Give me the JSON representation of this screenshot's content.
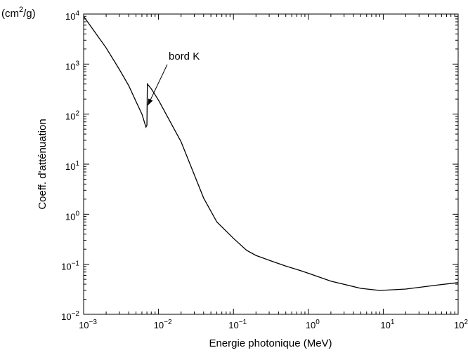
{
  "chart_data": {
    "type": "line",
    "title": "",
    "xlabel": "Energie photonique (MeV)",
    "ylabel": "Coeff. d'atténuation",
    "yunit": "(cm",
    "yunit_sup": "2",
    "yunit_tail": "/g)",
    "xscale": "log",
    "yscale": "log",
    "xlim": [
      0.001,
      100
    ],
    "ylim": [
      0.01,
      10000
    ],
    "grid": false,
    "legend": "none",
    "xticks": [
      {
        "value": 0.001,
        "base": "10",
        "exp": "−3"
      },
      {
        "value": 0.01,
        "base": "10",
        "exp": "−2"
      },
      {
        "value": 0.1,
        "base": "10",
        "exp": "−1"
      },
      {
        "value": 1,
        "base": "10",
        "exp": "0"
      },
      {
        "value": 10,
        "base": "10",
        "exp": "1"
      },
      {
        "value": 100,
        "base": "10",
        "exp": "2"
      }
    ],
    "yticks": [
      {
        "value": 0.01,
        "base": "10",
        "exp": "−2"
      },
      {
        "value": 0.1,
        "base": "10",
        "exp": "−1"
      },
      {
        "value": 1,
        "base": "10",
        "exp": "0"
      },
      {
        "value": 10,
        "base": "10",
        "exp": "1"
      },
      {
        "value": 100,
        "base": "10",
        "exp": "2"
      },
      {
        "value": 1000,
        "base": "10",
        "exp": "3"
      },
      {
        "value": 10000,
        "base": "10",
        "exp": "4"
      }
    ],
    "series": [
      {
        "color": "#000000",
        "x": [
          0.001,
          0.002,
          0.003,
          0.004,
          0.005,
          0.006,
          0.0068,
          0.007,
          0.0071,
          0.008,
          0.01,
          0.02,
          0.04,
          0.06,
          0.1,
          0.15,
          0.2,
          0.3,
          0.5,
          0.8,
          1,
          2,
          5,
          9,
          20,
          50,
          100
        ],
        "y": [
          9000,
          2100,
          780,
          370,
          180,
          100,
          55,
          60,
          400,
          320,
          190,
          28,
          2.1,
          0.7,
          0.33,
          0.19,
          0.15,
          0.12,
          0.092,
          0.074,
          0.066,
          0.046,
          0.033,
          0.03,
          0.032,
          0.038,
          0.043
        ]
      }
    ],
    "annotations": [
      {
        "text": "bord K",
        "arrow_to_x": 0.0072,
        "arrow_to_y": 150
      }
    ]
  }
}
